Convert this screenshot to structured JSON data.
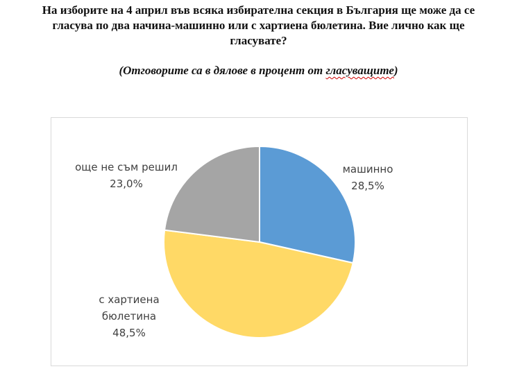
{
  "question": {
    "line1": "На изборите на 4 април във всяка избирателна секция в България ще може да се",
    "line2": "гласува по два начина-машинно или с хартиена бюлетина. Вие лично как ще",
    "line3": "гласувате?"
  },
  "note": {
    "prefix": "(Отговорите са в дялове в процент от ",
    "underlined": "гласуващите",
    "suffix": ")"
  },
  "chart_data": {
    "type": "pie",
    "start_angle_deg": 0,
    "direction": "clockwise",
    "slices": [
      {
        "label": "машинно",
        "value": 28.5,
        "value_label": "28,5%",
        "color": "#5b9bd5"
      },
      {
        "label": "с хартиена бюлетина",
        "label_lines": [
          "с хартиена",
          "бюлетина"
        ],
        "value": 48.5,
        "value_label": "48,5%",
        "color": "#ffd966"
      },
      {
        "label": "още не съм решил",
        "value": 23.0,
        "value_label": "23,0%",
        "color": "#a5a5a5"
      }
    ]
  }
}
